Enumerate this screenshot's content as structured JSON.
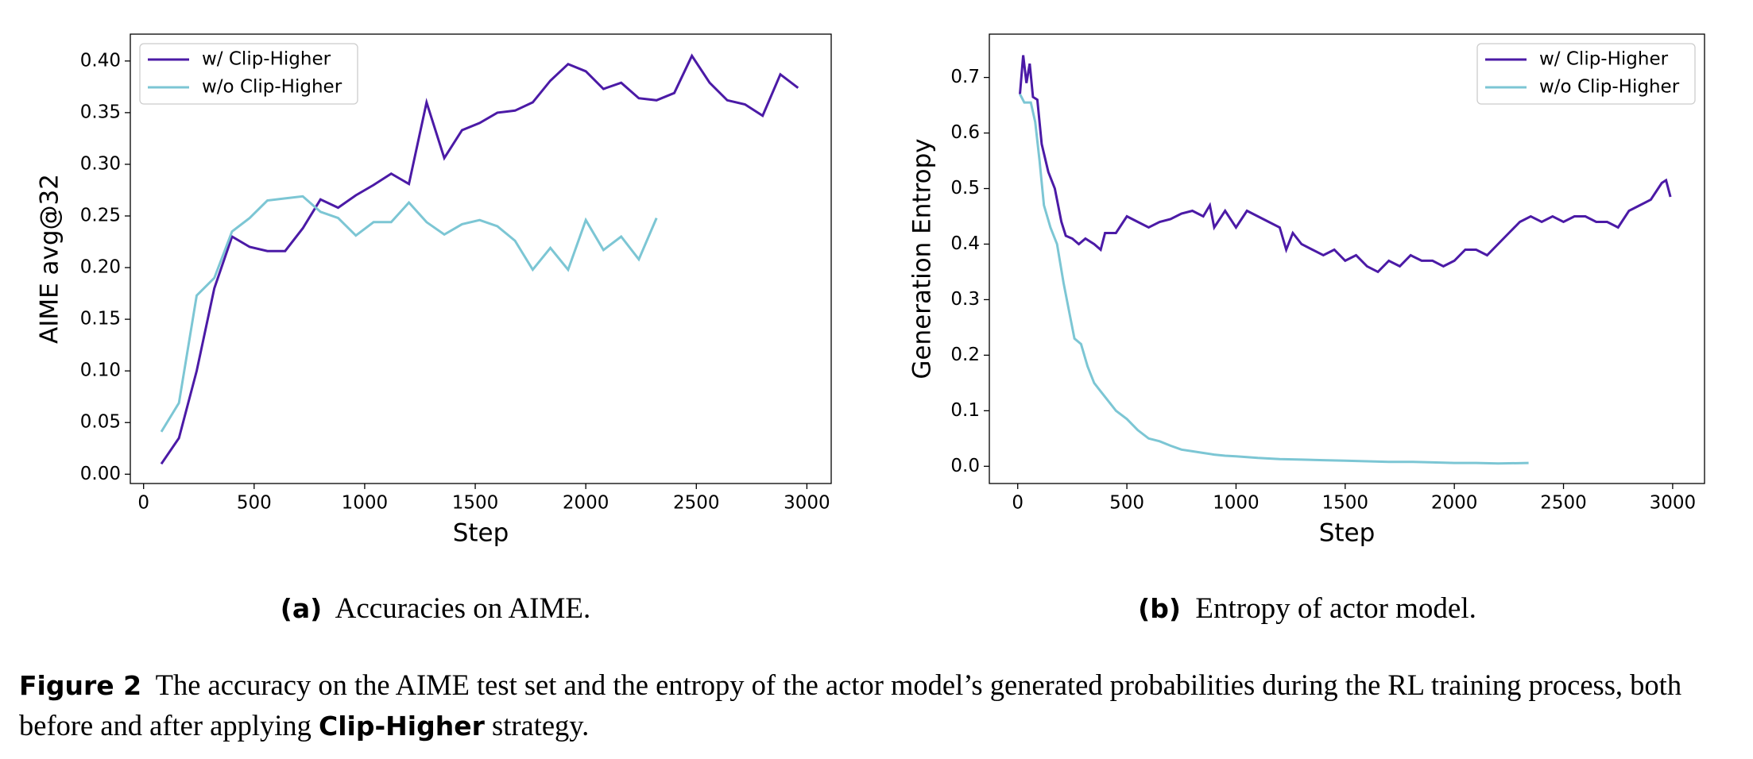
{
  "chart_data": [
    {
      "type": "line",
      "xlabel": "Step",
      "ylabel": "AIME avg@32",
      "xlim": [
        -60,
        3110
      ],
      "ylim": [
        -0.009,
        0.426
      ],
      "xticks": [
        0,
        500,
        1000,
        1500,
        2000,
        2500,
        3000
      ],
      "yticks": [
        {
          "value": 0,
          "label": "0.00"
        },
        0.05,
        {
          "value": 0.1,
          "label": "0.10"
        },
        0.15,
        {
          "value": 0.2,
          "label": "0.20"
        },
        0.25,
        {
          "value": 0.3,
          "label": "0.30"
        },
        0.35,
        {
          "value": 0.4,
          "label": "0.40"
        }
      ],
      "legend": "upper left",
      "series": [
        {
          "name": "w/ Clip-Higher",
          "color": "#4b1aa6",
          "x": [
            80,
            160,
            240,
            320,
            400,
            480,
            560,
            640,
            720,
            800,
            880,
            960,
            1040,
            1120,
            1200,
            1280,
            1360,
            1440,
            1520,
            1600,
            1680,
            1760,
            1840,
            1920,
            2000,
            2080,
            2160,
            2240,
            2320,
            2400,
            2480,
            2560,
            2640,
            2720,
            2800,
            2880,
            2960
          ],
          "values": [
            0.01,
            0.035,
            0.1,
            0.18,
            0.23,
            0.22,
            0.216,
            0.216,
            0.238,
            0.266,
            0.258,
            0.27,
            0.28,
            0.291,
            0.281,
            0.36,
            0.306,
            0.333,
            0.34,
            0.35,
            0.352,
            0.36,
            0.381,
            0.397,
            0.39,
            0.373,
            0.379,
            0.364,
            0.362,
            0.369,
            0.405,
            0.379,
            0.362,
            0.358,
            0.347,
            0.387,
            0.374
          ]
        },
        {
          "name": "w/o Clip-Higher",
          "color": "#7cc6d4",
          "x": [
            80,
            160,
            240,
            320,
            400,
            480,
            560,
            640,
            720,
            800,
            880,
            960,
            1040,
            1120,
            1200,
            1280,
            1360,
            1440,
            1520,
            1600,
            1680,
            1760,
            1840,
            1920,
            2000,
            2080,
            2160,
            2240,
            2320
          ],
          "values": [
            0.041,
            0.069,
            0.173,
            0.19,
            0.235,
            0.248,
            0.265,
            0.267,
            0.269,
            0.254,
            0.248,
            0.231,
            0.244,
            0.244,
            0.263,
            0.244,
            0.232,
            0.242,
            0.246,
            0.24,
            0.226,
            0.198,
            0.219,
            0.198,
            0.246,
            0.217,
            0.23,
            0.208,
            0.248
          ]
        }
      ]
    },
    {
      "type": "line",
      "xlabel": "Step",
      "ylabel": "Generation Entropy",
      "xlim": [
        -130,
        3146
      ],
      "ylim": [
        -0.031,
        0.778
      ],
      "xticks": [
        0,
        500,
        1000,
        1500,
        2000,
        2500,
        3000
      ],
      "yticks": [
        {
          "value": 0,
          "label": "0.0"
        },
        0.1,
        0.2,
        0.3,
        0.4,
        0.5,
        0.6,
        0.7
      ],
      "legend": "upper right",
      "series": [
        {
          "name": "w/ Clip-Higher",
          "color": "#4b1aa6",
          "x": [
            10,
            25,
            40,
            55,
            70,
            90,
            110,
            140,
            170,
            200,
            220,
            250,
            280,
            310,
            350,
            380,
            400,
            450,
            500,
            550,
            600,
            650,
            700,
            750,
            800,
            850,
            880,
            900,
            950,
            1000,
            1050,
            1100,
            1150,
            1200,
            1230,
            1260,
            1300,
            1350,
            1400,
            1450,
            1500,
            1550,
            1600,
            1650,
            1700,
            1750,
            1800,
            1850,
            1900,
            1950,
            2000,
            2050,
            2100,
            2150,
            2200,
            2250,
            2300,
            2350,
            2400,
            2450,
            2500,
            2550,
            2600,
            2650,
            2700,
            2750,
            2800,
            2850,
            2900,
            2950,
            2970,
            2990
          ],
          "values": [
            0.67,
            0.74,
            0.69,
            0.725,
            0.665,
            0.66,
            0.58,
            0.53,
            0.5,
            0.44,
            0.415,
            0.41,
            0.4,
            0.41,
            0.4,
            0.39,
            0.42,
            0.42,
            0.45,
            0.44,
            0.43,
            0.44,
            0.445,
            0.455,
            0.46,
            0.45,
            0.47,
            0.43,
            0.46,
            0.43,
            0.46,
            0.45,
            0.44,
            0.43,
            0.39,
            0.42,
            0.4,
            0.39,
            0.38,
            0.39,
            0.37,
            0.38,
            0.36,
            0.35,
            0.37,
            0.36,
            0.38,
            0.37,
            0.37,
            0.36,
            0.37,
            0.39,
            0.39,
            0.38,
            0.4,
            0.42,
            0.44,
            0.45,
            0.44,
            0.45,
            0.44,
            0.45,
            0.45,
            0.44,
            0.44,
            0.43,
            0.46,
            0.47,
            0.48,
            0.51,
            0.515,
            0.485
          ]
        },
        {
          "name": "w/o Clip-Higher",
          "color": "#7cc6d4",
          "x": [
            10,
            30,
            60,
            80,
            100,
            120,
            150,
            180,
            210,
            240,
            260,
            290,
            320,
            350,
            380,
            410,
            450,
            500,
            550,
            600,
            650,
            700,
            750,
            800,
            850,
            900,
            950,
            1000,
            1100,
            1200,
            1300,
            1400,
            1500,
            1600,
            1700,
            1800,
            1900,
            2000,
            2100,
            2200,
            2340
          ],
          "values": [
            0.67,
            0.655,
            0.655,
            0.62,
            0.55,
            0.47,
            0.43,
            0.4,
            0.33,
            0.27,
            0.23,
            0.22,
            0.18,
            0.15,
            0.135,
            0.12,
            0.1,
            0.085,
            0.065,
            0.05,
            0.045,
            0.037,
            0.03,
            0.027,
            0.024,
            0.021,
            0.019,
            0.018,
            0.015,
            0.013,
            0.012,
            0.011,
            0.01,
            0.009,
            0.008,
            0.008,
            0.007,
            0.006,
            0.006,
            0.005,
            0.006
          ]
        }
      ]
    }
  ],
  "captions": [
    {
      "label": "(a)",
      "text": "Accuracies on AIME."
    },
    {
      "label": "(b)",
      "text": "Entropy of actor model."
    }
  ],
  "figure": {
    "label": "Figure 2",
    "text_before": "The accuracy on the AIME test set and the entropy of the actor model’s generated probabilities during the RL training process, both before and after applying",
    "bold": "Clip-Higher",
    "text_after": "strategy."
  }
}
